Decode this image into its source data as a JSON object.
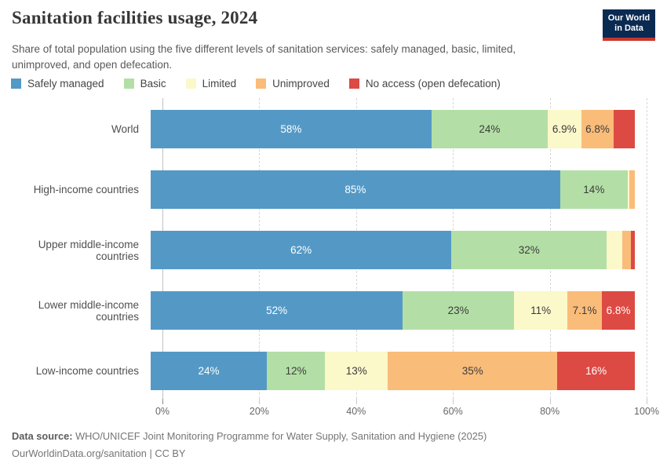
{
  "header": {
    "title": "Sanitation facilities usage, 2024",
    "subtitle_line1": "Share of total population using the five different levels of sanitation services: safely managed, basic, limited,",
    "subtitle_line2": "unimproved, and open defecation.",
    "logo": {
      "line1": "Our World",
      "line2": "in Data",
      "bg_color": "#0a2a52",
      "stripe_color": "#c7362c"
    }
  },
  "legend": {
    "items": [
      {
        "label": "Safely managed",
        "color": "#5499c6"
      },
      {
        "label": "Basic",
        "color": "#b3dfa6"
      },
      {
        "label": "Limited",
        "color": "#fbf8ca"
      },
      {
        "label": "Unimproved",
        "color": "#fabc79"
      },
      {
        "label": "No access (open defecation)",
        "color": "#dd4a43"
      }
    ]
  },
  "chart_data": {
    "type": "bar",
    "orientation": "horizontal",
    "stacked": true,
    "title": "Sanitation facilities usage, 2024",
    "categories": [
      "World",
      "High-income countries",
      "Upper middle-income countries",
      "Lower middle-income countries",
      "Low-income countries"
    ],
    "series": [
      {
        "name": "Safely managed",
        "color": "#5499c6",
        "label_color": "#ffffff",
        "values": [
          58,
          85,
          62,
          52,
          24
        ],
        "labels": [
          "58%",
          "85%",
          "62%",
          "52%",
          "24%"
        ]
      },
      {
        "name": "Basic",
        "color": "#b3dfa6",
        "label_color": "#3c3c3c",
        "values": [
          24,
          14,
          32,
          23,
          12
        ],
        "labels": [
          "24%",
          "14%",
          "32%",
          "23%",
          "12%"
        ]
      },
      {
        "name": "Limited",
        "color": "#fbf8ca",
        "label_color": "#3c3c3c",
        "values": [
          6.9,
          0.4,
          3.2,
          11,
          13
        ],
        "labels": [
          "6.9%",
          "",
          "",
          "11%",
          "13%"
        ]
      },
      {
        "name": "Unimproved",
        "color": "#fabc79",
        "label_color": "#3c3c3c",
        "values": [
          6.8,
          1.1,
          1.8,
          7.1,
          35
        ],
        "labels": [
          "6.8%",
          "",
          "",
          "7.1%",
          "35%"
        ]
      },
      {
        "name": "No access (open defecation)",
        "color": "#dd4a43",
        "label_color": "#ffffff",
        "values": [
          4.3,
          0,
          0.8,
          6.8,
          16
        ],
        "labels": [
          "",
          "",
          "",
          "6.8%",
          "16%"
        ]
      }
    ],
    "xlim": [
      0,
      100
    ],
    "xticks": [
      {
        "value": 0,
        "label": "0%"
      },
      {
        "value": 20,
        "label": "20%"
      },
      {
        "value": 40,
        "label": "40%"
      },
      {
        "value": 60,
        "label": "60%"
      },
      {
        "value": 80,
        "label": "80%"
      },
      {
        "value": 100,
        "label": "100%"
      }
    ],
    "grid": "dashed-vertical",
    "legend_position": "top"
  },
  "footer": {
    "source_label": "Data source:",
    "source_text": " WHO/UNICEF Joint Monitoring Programme for Water Supply, Sanitation and Hygiene (2025)",
    "license_line": "OurWorldinData.org/sanitation | CC BY"
  }
}
